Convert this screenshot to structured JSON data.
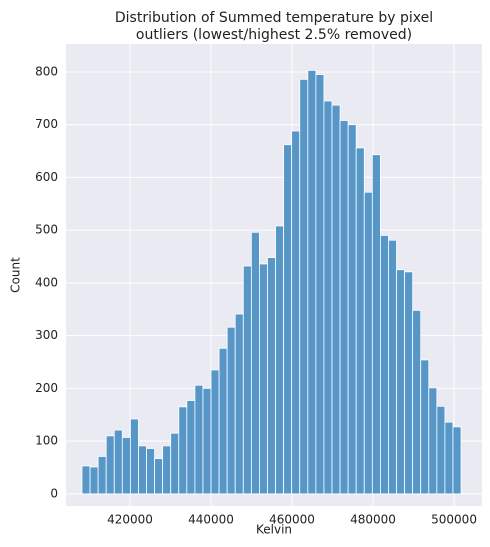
{
  "chart_data": {
    "type": "histogram",
    "title": [
      "Distribution of Summed temperature by pixel",
      "outliers (lowest/highest 2.5% removed)"
    ],
    "x_label": "Kelvin",
    "y_label": "Count",
    "bins": [
      408150,
      410141,
      412132,
      414123,
      416114,
      418105,
      420096,
      422087,
      424078,
      426069,
      428060,
      430051,
      432042,
      434033,
      436024,
      438015,
      440006,
      441997,
      443988,
      445979,
      447970,
      449961,
      451952,
      453943,
      455934,
      457925,
      459916,
      461907,
      463898,
      465889,
      467880,
      469871,
      471862,
      473853,
      475844,
      477835,
      479826,
      481817,
      483808,
      485799,
      487790,
      489781,
      491772,
      493763,
      495754,
      497745,
      499736,
      501727
    ],
    "values": [
      53,
      51,
      71,
      110,
      121,
      107,
      142,
      91,
      86,
      67,
      91,
      115,
      165,
      177,
      206,
      200,
      235,
      276,
      316,
      341,
      432,
      496,
      436,
      448,
      508,
      662,
      688,
      786,
      803,
      795,
      745,
      737,
      708,
      700,
      656,
      572,
      643,
      490,
      481,
      425,
      421,
      348,
      254,
      201,
      166,
      136,
      127
    ],
    "color": "#5797c8",
    "xlim": [
      404200,
      506900
    ],
    "xticks": [
      420000,
      440000,
      460000,
      480000,
      500000
    ],
    "ylim": [
      -23,
      853
    ],
    "yticks": [
      0,
      100,
      200,
      300,
      400,
      500,
      600,
      700,
      800
    ],
    "grid": true
  }
}
